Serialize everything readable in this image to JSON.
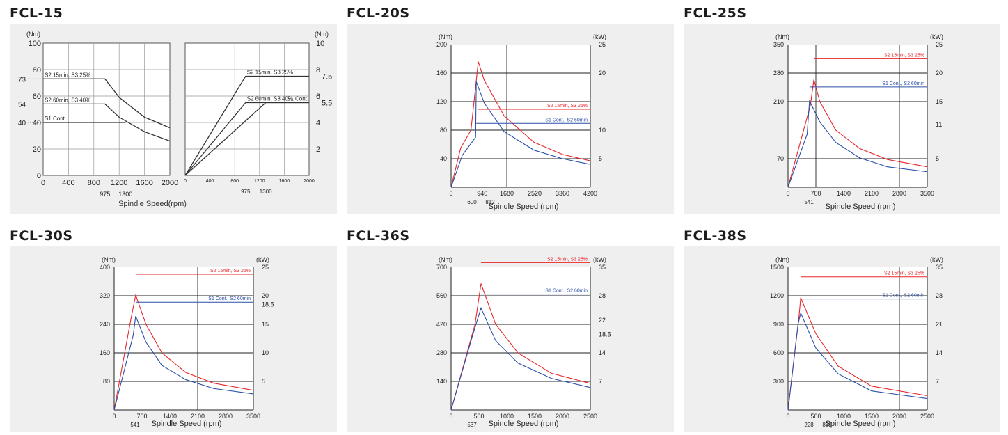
{
  "charts": [
    {
      "title": "FCL-15",
      "type": "dual",
      "xlabel": "Spindle Speed(rpm)",
      "torque": {
        "unit": "(Nm)",
        "xmax": 2000,
        "ymax": 100,
        "xticks": [
          0,
          400,
          800,
          1200,
          1600,
          2000
        ],
        "yticks": [
          0,
          20,
          40,
          60,
          80,
          100
        ],
        "extra_x": [
          975,
          1300
        ],
        "marks": [
          {
            "v": 73,
            "text": "73"
          },
          {
            "v": 54,
            "text": "54"
          },
          {
            "v": 40,
            "text": "40"
          }
        ],
        "series": [
          {
            "name": "S2 15min, S3 25%",
            "color": "#333333",
            "points": [
              [
                0,
                73
              ],
              [
                975,
                73
              ],
              [
                1200,
                59
              ],
              [
                1600,
                44
              ],
              [
                2000,
                36
              ]
            ]
          },
          {
            "name": "S2 60min, S3 40%",
            "color": "#333333",
            "points": [
              [
                0,
                54
              ],
              [
                975,
                54
              ],
              [
                1200,
                44
              ],
              [
                1600,
                33
              ],
              [
                2000,
                26
              ]
            ]
          },
          {
            "name": "S1 Cont.",
            "color": "#333333",
            "points": [
              [
                0,
                40
              ],
              [
                1300,
                40
              ]
            ]
          }
        ]
      },
      "power": {
        "unit": "(Nm)",
        "xmax": 2000,
        "ymax": 10,
        "xticks": [
          0,
          400,
          800,
          1200,
          1600,
          2000
        ],
        "ytick_labels": [
          "2",
          "4",
          "6",
          "8",
          "10"
        ],
        "yticks": [
          2,
          4,
          6,
          8,
          10
        ],
        "extra_x": [
          975,
          1300
        ],
        "marks": [
          {
            "v": 7.5,
            "text": "7.5"
          },
          {
            "v": 5.5,
            "text": "5.5"
          }
        ],
        "series": [
          {
            "name": "S2 15min, S3 25%",
            "color": "#333333",
            "points": [
              [
                0,
                0
              ],
              [
                975,
                7.5
              ],
              [
                2000,
                7.5
              ]
            ]
          },
          {
            "name": "S2 60min, S3 40%",
            "color": "#333333",
            "points": [
              [
                0,
                0
              ],
              [
                975,
                5.5
              ],
              [
                2000,
                5.5
              ]
            ]
          },
          {
            "name": "S1 Cont.",
            "color": "#333333",
            "points": [
              [
                0,
                0
              ],
              [
                1300,
                5.5
              ],
              [
                2000,
                5.5
              ]
            ]
          }
        ]
      }
    },
    {
      "title": "FCL-20S",
      "type": "single",
      "xlabel": "Spindle Speed (rpm)",
      "yunit": "(Nm)",
      "y2unit": "(kW)",
      "xmax": 4200,
      "ymax": 200,
      "y2max": 25,
      "xticks": [
        0,
        940,
        1680,
        2520,
        3360,
        4200
      ],
      "xtick_labels": [
        "0",
        "940",
        "1680",
        "2520",
        "3360",
        "4200"
      ],
      "yticks": [
        40,
        80,
        120,
        160,
        200
      ],
      "ytick_labels": [
        "40",
        "80",
        "120",
        "160",
        "200"
      ],
      "y2ticks": [
        5,
        10,
        20,
        25
      ],
      "y2tick_labels": [
        "5",
        "10",
        "20",
        "25"
      ],
      "vlines": [
        1680
      ],
      "extra_x": [
        "600",
        "812"
      ],
      "series": [
        {
          "name": "S2 15min, S3 25%",
          "color": "#e8262a",
          "points": [
            [
              0,
              0
            ],
            [
              290,
              55
            ],
            [
              600,
              80
            ],
            [
              820,
              176
            ],
            [
              1000,
              150
            ],
            [
              1600,
              100
            ],
            [
              2500,
              63
            ],
            [
              3360,
              46
            ],
            [
              4200,
              37
            ]
          ]
        },
        {
          "name": "S1 Cont., S2 60min",
          "color": "#2b4fa8",
          "points": [
            [
              0,
              0
            ],
            [
              340,
              45
            ],
            [
              740,
              70
            ],
            [
              760,
              148
            ],
            [
              1000,
              118
            ],
            [
              1600,
              78
            ],
            [
              2500,
              52
            ],
            [
              3360,
              40
            ],
            [
              4200,
              32
            ]
          ]
        }
      ]
    },
    {
      "title": "FCL-25S",
      "type": "single",
      "xlabel": "Spindle Speed (rpm)",
      "yunit": "(Nm)",
      "y2unit": "(kW)",
      "xmax": 3500,
      "ymax": 350,
      "y2max": 25,
      "xticks": [
        0,
        700,
        1400,
        2100,
        2800,
        3500
      ],
      "xtick_labels": [
        "0",
        "700",
        "1400",
        "2100",
        "2800",
        "3500"
      ],
      "yticks": [
        70,
        210,
        280,
        350
      ],
      "ytick_labels": [
        "70",
        "210",
        "280",
        "350"
      ],
      "y2ticks": [
        5,
        11,
        15,
        20,
        25
      ],
      "y2tick_labels": [
        "5",
        "11",
        "15",
        "20",
        "25"
      ],
      "vlines": [
        700,
        2800
      ],
      "extra_x": [
        "541"
      ],
      "series": [
        {
          "name": "S2 15min, S3 25%",
          "color": "#e8262a",
          "points": [
            [
              0,
              0
            ],
            [
              560,
              200
            ],
            [
              650,
              264
            ],
            [
              800,
              210
            ],
            [
              1200,
              140
            ],
            [
              1800,
              95
            ],
            [
              2500,
              68
            ],
            [
              3500,
              50
            ]
          ]
        },
        {
          "name": "S1 Cont., S2 60min",
          "color": "#2b4fa8",
          "points": [
            [
              0,
              0
            ],
            [
              480,
              130
            ],
            [
              541,
              212
            ],
            [
              800,
              160
            ],
            [
              1200,
              110
            ],
            [
              1800,
              72
            ],
            [
              2500,
              50
            ],
            [
              3500,
              38
            ]
          ]
        }
      ]
    },
    {
      "title": "FCL-30S",
      "type": "single",
      "xlabel": "Spindle Speed (rpm)",
      "yunit": "(Nm)",
      "y2unit": "(kW)",
      "xmax": 3500,
      "ymax": 400,
      "y2max": 25,
      "xticks": [
        0,
        700,
        1400,
        2100,
        2800,
        3500
      ],
      "xtick_labels": [
        "0",
        "700",
        "1400",
        "2100",
        "2800",
        "3500"
      ],
      "yticks": [
        80,
        160,
        240,
        320,
        400
      ],
      "ytick_labels": [
        "80",
        "160",
        "240",
        "320",
        "400"
      ],
      "y2ticks": [
        5,
        10,
        15,
        18.5,
        20,
        25
      ],
      "y2tick_labels": [
        "5",
        "10",
        "15",
        "18.5",
        "20",
        "25"
      ],
      "vlines": [
        2100
      ],
      "extra_x": [
        "541"
      ],
      "series": [
        {
          "name": "S2 15min, S3 25%",
          "color": "#e8262a",
          "points": [
            [
              0,
              0
            ],
            [
              430,
              260
            ],
            [
              541,
              322
            ],
            [
              800,
              240
            ],
            [
              1200,
              160
            ],
            [
              1800,
              105
            ],
            [
              2500,
              75
            ],
            [
              3500,
              55
            ]
          ]
        },
        {
          "name": "S1 Cont., S2 60min",
          "color": "#2b4fa8",
          "points": [
            [
              0,
              0
            ],
            [
              480,
              210
            ],
            [
              541,
              263
            ],
            [
              800,
              190
            ],
            [
              1200,
              125
            ],
            [
              1800,
              85
            ],
            [
              2500,
              60
            ],
            [
              3500,
              45
            ]
          ]
        }
      ]
    },
    {
      "title": "FCL-36S",
      "type": "single",
      "xlabel": "Spindle Speed (rpm)",
      "yunit": "(Nm)",
      "y2unit": "(kW)",
      "xmax": 2500,
      "ymax": 700,
      "y2max": 35,
      "xticks": [
        0,
        500,
        1000,
        1500,
        2000,
        2500
      ],
      "xtick_labels": [
        "0",
        "500",
        "1000",
        "1500",
        "2000",
        "2500"
      ],
      "yticks": [
        140,
        280,
        420,
        560,
        700
      ],
      "ytick_labels": [
        "140",
        "280",
        "420",
        "560",
        "700"
      ],
      "y2ticks": [
        7,
        14,
        18.5,
        22,
        28,
        35
      ],
      "y2tick_labels": [
        "7",
        "14",
        "18.5",
        "22",
        "28",
        "35"
      ],
      "vlines": [],
      "extra_x": [
        "537"
      ],
      "series": [
        {
          "name": "S2 15min, S3 25%",
          "color": "#e8262a",
          "points": [
            [
              0,
              0
            ],
            [
              430,
              420
            ],
            [
              537,
              620
            ],
            [
              800,
              420
            ],
            [
              1200,
              280
            ],
            [
              1800,
              180
            ],
            [
              2500,
              130
            ]
          ]
        },
        {
          "name": "S1 Cont., S2 60min",
          "color": "#2b4fa8",
          "points": [
            [
              0,
              0
            ],
            [
              380,
              360
            ],
            [
              537,
              500
            ],
            [
              800,
              340
            ],
            [
              1200,
              230
            ],
            [
              1800,
              155
            ],
            [
              2500,
              110
            ]
          ]
        }
      ]
    },
    {
      "title": "FCL-38S",
      "type": "single",
      "xlabel": "Spindle Speed (rpm)",
      "yunit": "(Nm)",
      "y2unit": "(kW)",
      "xmax": 2500,
      "ymax": 1500,
      "y2max": 35,
      "xticks": [
        0,
        500,
        1000,
        1500,
        2000,
        2500
      ],
      "xtick_labels": [
        "0",
        "500",
        "1000",
        "1500",
        "2000",
        "2500"
      ],
      "yticks": [
        300,
        600,
        900,
        1200,
        1500
      ],
      "ytick_labels": [
        "300",
        "600",
        "900",
        "1200",
        "1500"
      ],
      "y2ticks": [
        7,
        14,
        21,
        28,
        35
      ],
      "y2tick_labels": [
        "7",
        "14",
        "21",
        "28",
        "35"
      ],
      "vlines": [
        2000
      ],
      "extra_x": [
        "228",
        "889"
      ],
      "series": [
        {
          "name": "S2 15min, S3 25%",
          "color": "#e8262a",
          "points": [
            [
              0,
              0
            ],
            [
              200,
              1000
            ],
            [
              228,
              1180
            ],
            [
              500,
              800
            ],
            [
              900,
              460
            ],
            [
              1500,
              250
            ],
            [
              2500,
              150
            ]
          ]
        },
        {
          "name": "S1 Cont., S2 60min",
          "color": "#2b4fa8",
          "points": [
            [
              0,
              0
            ],
            [
              180,
              900
            ],
            [
              228,
              1020
            ],
            [
              500,
              650
            ],
            [
              900,
              380
            ],
            [
              1500,
              200
            ],
            [
              2500,
              120
            ]
          ]
        }
      ]
    }
  ]
}
